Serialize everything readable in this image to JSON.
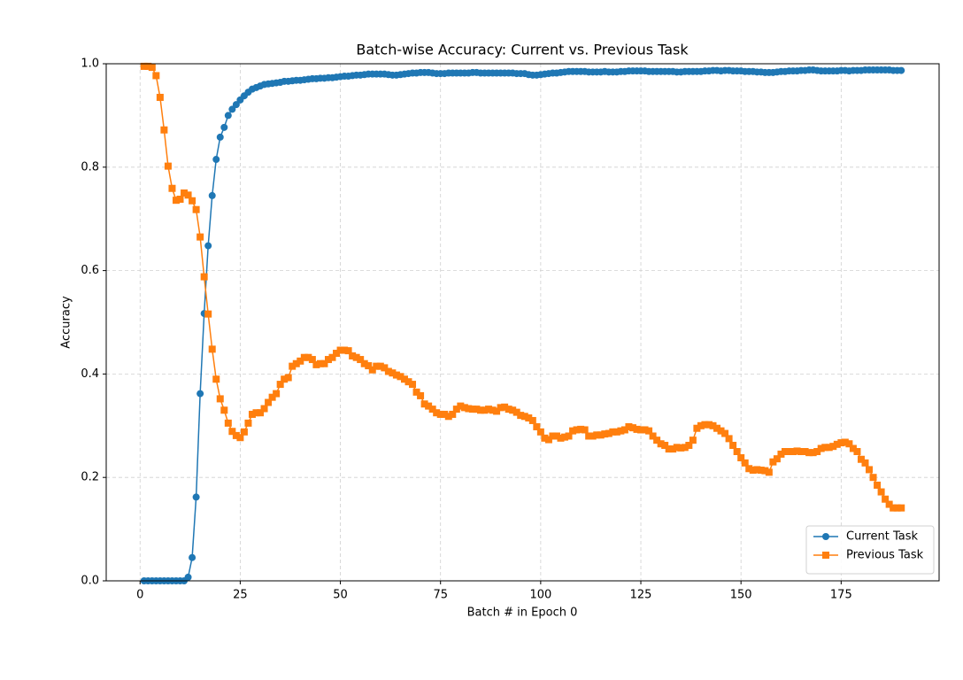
{
  "chart_data": {
    "type": "line",
    "title": "Batch-wise Accuracy: Current vs. Previous Task",
    "x_label": "Batch # in Epoch 0",
    "y_label": "Accuracy",
    "x": [
      1,
      2,
      3,
      4,
      5,
      6,
      7,
      8,
      9,
      10,
      11,
      12,
      13,
      14,
      15,
      16,
      17,
      18,
      19,
      20,
      21,
      22,
      23,
      24,
      25,
      26,
      27,
      28,
      29,
      30,
      31,
      32,
      33,
      34,
      35,
      36,
      37,
      38,
      39,
      40,
      41,
      42,
      43,
      44,
      45,
      46,
      47,
      48,
      49,
      50,
      51,
      52,
      53,
      54,
      55,
      56,
      57,
      58,
      59,
      60,
      61,
      62,
      63,
      64,
      65,
      66,
      67,
      68,
      69,
      70,
      71,
      72,
      73,
      74,
      75,
      76,
      77,
      78,
      79,
      80,
      81,
      82,
      83,
      84,
      85,
      86,
      87,
      88,
      89,
      90,
      91,
      92,
      93,
      94,
      95,
      96,
      97,
      98,
      99,
      100,
      101,
      102,
      103,
      104,
      105,
      106,
      107,
      108,
      109,
      110,
      111,
      112,
      113,
      114,
      115,
      116,
      117,
      118,
      119,
      120,
      121,
      122,
      123,
      124,
      125,
      126,
      127,
      128,
      129,
      130,
      131,
      132,
      133,
      134,
      135,
      136,
      137,
      138,
      139,
      140,
      141,
      142,
      143,
      144,
      145,
      146,
      147,
      148,
      149,
      150,
      151,
      152,
      153,
      154,
      155,
      156,
      157,
      158,
      159,
      160,
      161,
      162,
      163,
      164,
      165,
      166,
      167,
      168,
      169,
      170,
      171,
      172,
      173,
      174,
      175,
      176,
      177,
      178,
      179,
      180,
      181,
      182,
      183,
      184,
      185,
      186,
      187,
      188,
      189,
      190
    ],
    "series": [
      {
        "name": "Current Task",
        "color": "#1f77b4",
        "marker": "circle",
        "values": [
          0,
          0,
          0,
          0,
          0,
          0,
          0,
          0,
          0,
          0,
          0,
          0.007,
          0.045,
          0.162,
          0.362,
          0.517,
          0.648,
          0.745,
          0.815,
          0.858,
          0.877,
          0.9,
          0.912,
          0.921,
          0.93,
          0.938,
          0.945,
          0.951,
          0.954,
          0.957,
          0.96,
          0.961,
          0.962,
          0.963,
          0.964,
          0.966,
          0.966,
          0.967,
          0.968,
          0.968,
          0.969,
          0.97,
          0.971,
          0.971,
          0.972,
          0.972,
          0.973,
          0.973,
          0.974,
          0.975,
          0.976,
          0.976,
          0.977,
          0.978,
          0.978,
          0.979,
          0.98,
          0.98,
          0.98,
          0.98,
          0.98,
          0.979,
          0.978,
          0.978,
          0.979,
          0.98,
          0.981,
          0.982,
          0.982,
          0.983,
          0.983,
          0.983,
          0.982,
          0.981,
          0.981,
          0.981,
          0.982,
          0.982,
          0.982,
          0.982,
          0.982,
          0.982,
          0.983,
          0.983,
          0.982,
          0.982,
          0.982,
          0.982,
          0.982,
          0.982,
          0.982,
          0.982,
          0.982,
          0.981,
          0.981,
          0.981,
          0.979,
          0.978,
          0.978,
          0.979,
          0.98,
          0.981,
          0.982,
          0.982,
          0.983,
          0.984,
          0.985,
          0.985,
          0.985,
          0.985,
          0.985,
          0.984,
          0.984,
          0.984,
          0.984,
          0.985,
          0.984,
          0.984,
          0.984,
          0.985,
          0.985,
          0.986,
          0.986,
          0.986,
          0.986,
          0.986,
          0.985,
          0.985,
          0.985,
          0.985,
          0.985,
          0.985,
          0.985,
          0.984,
          0.984,
          0.985,
          0.985,
          0.985,
          0.985,
          0.985,
          0.986,
          0.986,
          0.987,
          0.987,
          0.986,
          0.987,
          0.987,
          0.986,
          0.986,
          0.986,
          0.985,
          0.985,
          0.985,
          0.984,
          0.984,
          0.983,
          0.983,
          0.983,
          0.984,
          0.985,
          0.985,
          0.986,
          0.986,
          0.986,
          0.987,
          0.987,
          0.988,
          0.988,
          0.987,
          0.986,
          0.986,
          0.986,
          0.986,
          0.986,
          0.987,
          0.987,
          0.986,
          0.987,
          0.987,
          0.987,
          0.988,
          0.988,
          0.988,
          0.988,
          0.988,
          0.988,
          0.988,
          0.987,
          0.987,
          0.987
        ]
      },
      {
        "name": "Previous Task",
        "color": "#ff7f0e",
        "marker": "square",
        "values": [
          0.995,
          0.995,
          0.993,
          0.977,
          0.935,
          0.872,
          0.802,
          0.759,
          0.736,
          0.738,
          0.75,
          0.746,
          0.735,
          0.718,
          0.665,
          0.588,
          0.516,
          0.448,
          0.39,
          0.352,
          0.33,
          0.305,
          0.289,
          0.281,
          0.277,
          0.288,
          0.305,
          0.322,
          0.325,
          0.325,
          0.333,
          0.345,
          0.355,
          0.362,
          0.38,
          0.39,
          0.393,
          0.415,
          0.42,
          0.425,
          0.432,
          0.432,
          0.428,
          0.418,
          0.42,
          0.42,
          0.428,
          0.432,
          0.44,
          0.446,
          0.446,
          0.445,
          0.435,
          0.432,
          0.428,
          0.42,
          0.416,
          0.408,
          0.415,
          0.415,
          0.412,
          0.405,
          0.402,
          0.398,
          0.395,
          0.39,
          0.385,
          0.38,
          0.365,
          0.358,
          0.342,
          0.338,
          0.332,
          0.325,
          0.322,
          0.322,
          0.318,
          0.322,
          0.332,
          0.338,
          0.335,
          0.333,
          0.332,
          0.332,
          0.33,
          0.33,
          0.332,
          0.33,
          0.328,
          0.335,
          0.336,
          0.332,
          0.33,
          0.326,
          0.32,
          0.318,
          0.315,
          0.31,
          0.298,
          0.288,
          0.276,
          0.273,
          0.28,
          0.28,
          0.276,
          0.278,
          0.28,
          0.29,
          0.292,
          0.293,
          0.292,
          0.28,
          0.28,
          0.282,
          0.282,
          0.284,
          0.285,
          0.288,
          0.288,
          0.29,
          0.292,
          0.298,
          0.296,
          0.293,
          0.292,
          0.292,
          0.29,
          0.28,
          0.272,
          0.265,
          0.262,
          0.255,
          0.255,
          0.258,
          0.257,
          0.258,
          0.262,
          0.272,
          0.295,
          0.3,
          0.302,
          0.302,
          0.3,
          0.295,
          0.29,
          0.285,
          0.275,
          0.262,
          0.25,
          0.238,
          0.228,
          0.217,
          0.214,
          0.215,
          0.214,
          0.213,
          0.21,
          0.23,
          0.236,
          0.245,
          0.25,
          0.25,
          0.25,
          0.251,
          0.25,
          0.25,
          0.248,
          0.248,
          0.25,
          0.256,
          0.258,
          0.258,
          0.26,
          0.264,
          0.267,
          0.268,
          0.265,
          0.256,
          0.25,
          0.235,
          0.228,
          0.215,
          0.2,
          0.185,
          0.172,
          0.158,
          0.148,
          0.141,
          0.141,
          0.141
        ]
      }
    ],
    "xlim": [
      -8.45,
      199.45
    ],
    "ylim": [
      0,
      1
    ],
    "xticks": [
      0,
      25,
      50,
      75,
      100,
      125,
      150,
      175
    ],
    "yticks": [
      {
        "value": 0,
        "label": "0.0"
      },
      0.2,
      0.4,
      0.6,
      0.8,
      {
        "value": 1,
        "label": "1.0"
      }
    ],
    "grid": true,
    "legend": "lower right"
  }
}
